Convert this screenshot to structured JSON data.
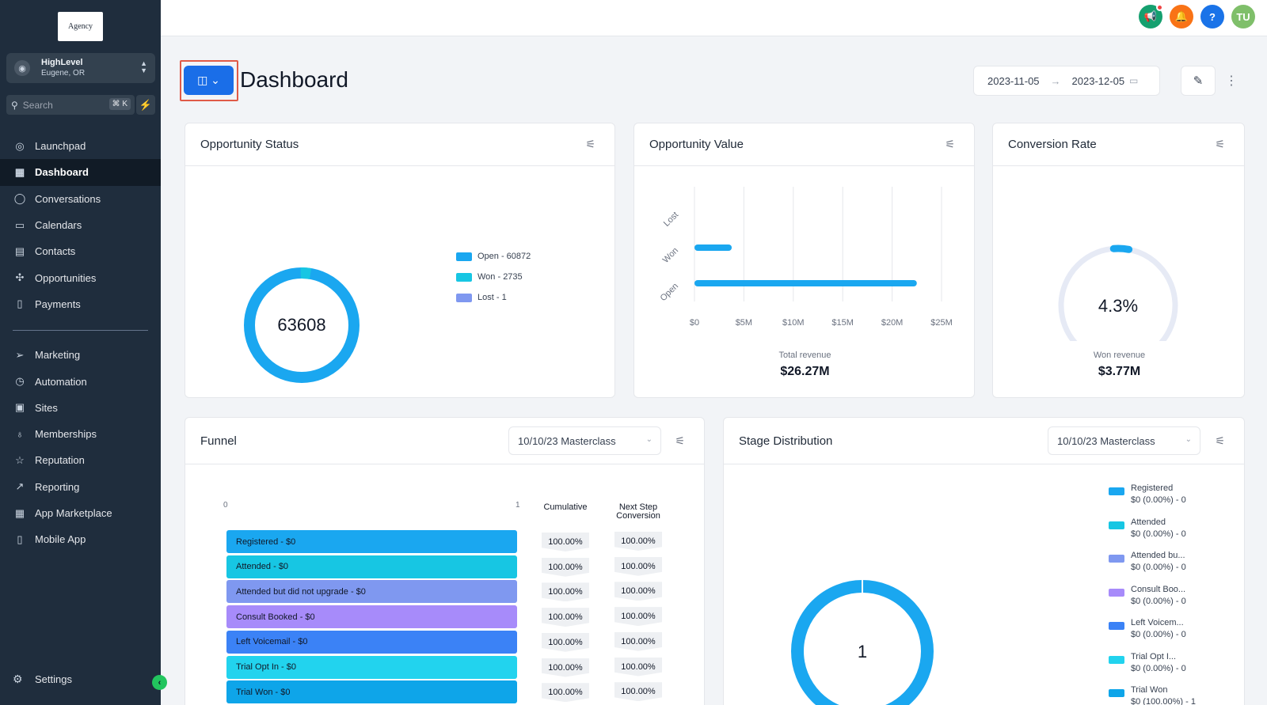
{
  "sidebar": {
    "logo_text": "Agency",
    "account": {
      "name": "HighLevel",
      "location": "Eugene, OR"
    },
    "search": {
      "placeholder": "Search",
      "shortcut": "⌘ K"
    },
    "nav_primary": [
      {
        "label": "Launchpad",
        "icon": "launchpad-icon"
      },
      {
        "label": "Dashboard",
        "icon": "dashboard-icon",
        "active": true
      },
      {
        "label": "Conversations",
        "icon": "chat-icon"
      },
      {
        "label": "Calendars",
        "icon": "calendar-icon"
      },
      {
        "label": "Contacts",
        "icon": "contacts-icon"
      },
      {
        "label": "Opportunities",
        "icon": "opportunities-icon"
      },
      {
        "label": "Payments",
        "icon": "payments-icon"
      }
    ],
    "nav_secondary": [
      {
        "label": "Marketing",
        "icon": "send-icon"
      },
      {
        "label": "Automation",
        "icon": "automation-icon"
      },
      {
        "label": "Sites",
        "icon": "sites-icon"
      },
      {
        "label": "Memberships",
        "icon": "memberships-icon"
      },
      {
        "label": "Reputation",
        "icon": "star-icon"
      },
      {
        "label": "Reporting",
        "icon": "trend-icon"
      },
      {
        "label": "App Marketplace",
        "icon": "grid-icon"
      },
      {
        "label": "Mobile App",
        "icon": "mobile-icon"
      }
    ],
    "settings_label": "Settings"
  },
  "topbar": {
    "avatar_initials": "TU",
    "colors": {
      "announce": "#15a06f",
      "notify": "#f97316",
      "help": "#1a73e8",
      "avatar": "#7fbf6a"
    }
  },
  "header": {
    "title": "Dashboard",
    "date_start": "2023-11-05",
    "date_end": "2023-12-05"
  },
  "opportunity_status": {
    "title": "Opportunity Status",
    "total": "63608",
    "legend": [
      {
        "label": "Open - 60872",
        "color": "#1aa7f0"
      },
      {
        "label": "Won - 2735",
        "color": "#17c6e3"
      },
      {
        "label": "Lost - 1",
        "color": "#7f98f0"
      }
    ]
  },
  "opportunity_value": {
    "title": "Opportunity Value",
    "summary_label": "Total revenue",
    "summary_value": "$26.27M"
  },
  "conversion_rate": {
    "title": "Conversion Rate",
    "rate": "4.3%",
    "summary_label": "Won revenue",
    "summary_value": "$3.77M"
  },
  "funnel": {
    "title": "Funnel",
    "dropdown_value": "10/10/23 Masterclass",
    "axis_start": "0",
    "axis_end": "1",
    "col_cumulative": "Cumulative",
    "col_next_1": "Next Step",
    "col_next_2": "Conversion",
    "stages": [
      {
        "label": "Registered - $0",
        "color": "#1aa7f0",
        "cumulative": "100.00%",
        "next": "100.00%"
      },
      {
        "label": "Attended - $0",
        "color": "#17c6e3",
        "cumulative": "100.00%",
        "next": "100.00%"
      },
      {
        "label": "Attended but did not upgrade - $0",
        "color": "#7f98f0",
        "cumulative": "100.00%",
        "next": "100.00%"
      },
      {
        "label": "Consult Booked - $0",
        "color": "#a78bfa",
        "cumulative": "100.00%",
        "next": "100.00%"
      },
      {
        "label": "Left Voicemail - $0",
        "color": "#3b82f6",
        "cumulative": "100.00%",
        "next": "100.00%"
      },
      {
        "label": "Trial Opt In - $0",
        "color": "#22d3ee",
        "cumulative": "100.00%",
        "next": "100.00%"
      },
      {
        "label": "Trial Won - $0",
        "color": "#0ea5e9",
        "cumulative": "100.00%",
        "next": "100.00%"
      }
    ]
  },
  "stage_distribution": {
    "title": "Stage Distribution",
    "dropdown_value": "10/10/23 Masterclass",
    "total": "1",
    "legend": [
      {
        "name": "Registered",
        "value": "$0 (0.00%) - 0",
        "color": "#1aa7f0"
      },
      {
        "name": "Attended",
        "value": "$0 (0.00%) - 0",
        "color": "#17c6e3"
      },
      {
        "name": "Attended bu...",
        "value": "$0 (0.00%) - 0",
        "color": "#7f98f0"
      },
      {
        "name": "Consult Boo...",
        "value": "$0 (0.00%) - 0",
        "color": "#a78bfa"
      },
      {
        "name": "Left Voicem...",
        "value": "$0 (0.00%) - 0",
        "color": "#3b82f6"
      },
      {
        "name": "Trial Opt I...",
        "value": "$0 (0.00%) - 0",
        "color": "#22d3ee"
      },
      {
        "name": "Trial Won",
        "value": "$0 (100.00%) - 1",
        "color": "#0ea5e9"
      }
    ]
  },
  "chart_data": [
    {
      "type": "pie",
      "title": "Opportunity Status",
      "categories": [
        "Open",
        "Won",
        "Lost"
      ],
      "values": [
        60872,
        2735,
        1
      ]
    },
    {
      "type": "bar",
      "title": "Opportunity Value",
      "orientation": "horizontal",
      "categories": [
        "Lost",
        "Won",
        "Open"
      ],
      "values": [
        0,
        3.77,
        22.5
      ],
      "value_unit": "$M",
      "xlim": [
        0,
        25
      ],
      "x_ticks": [
        "$0",
        "$5M",
        "$10M",
        "$15M",
        "$20M",
        "$25M"
      ],
      "grid": true
    },
    {
      "type": "pie",
      "title": "Conversion Rate",
      "categories": [
        "Won",
        "Other"
      ],
      "values": [
        4.3,
        95.7
      ]
    },
    {
      "type": "pie",
      "title": "Stage Distribution",
      "categories": [
        "Registered",
        "Attended",
        "Attended bu...",
        "Consult Boo...",
        "Left Voicem...",
        "Trial Opt I...",
        "Trial Won"
      ],
      "values": [
        0,
        0,
        0,
        0,
        0,
        0,
        1
      ]
    }
  ]
}
